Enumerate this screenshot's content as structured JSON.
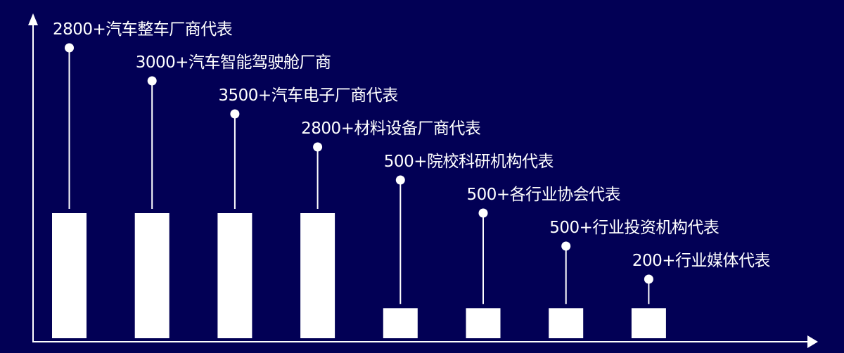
{
  "colors": {
    "background": "#020055",
    "foreground": "#ffffff"
  },
  "chart_data": {
    "type": "bar",
    "title": "",
    "xlabel": "",
    "ylabel": "",
    "axes": {
      "x_arrow": true,
      "y_arrow": true,
      "ticks": false,
      "grid": false
    },
    "categories": [
      "2800+汽车整车厂商代表",
      "3000+汽车智能驾驶舱厂商",
      "3500+汽车电子厂商代表",
      "2800+材料设备厂商代表",
      "500+院校科研机构代表",
      "500+各行业协会代表",
      "500+行业投资机构代表",
      "200+行业媒体代表"
    ],
    "bar_level": [
      1,
      1,
      1,
      1,
      0.24,
      0.24,
      0.24,
      0.24
    ]
  }
}
